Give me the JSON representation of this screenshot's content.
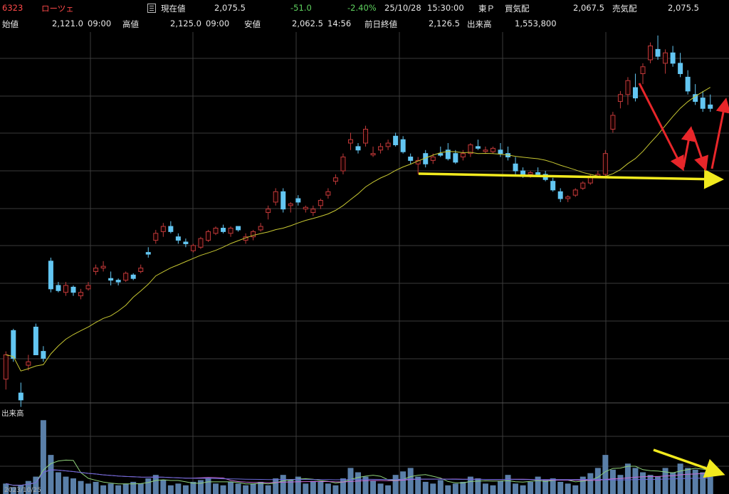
{
  "header": {
    "code": "6323",
    "name": "ローツェ",
    "current_label": "現在値",
    "current_value": "2,075.5",
    "change": "-51.0",
    "change_pct": "-2.40%",
    "datetime": "25/10/28",
    "time": "15:30:00",
    "market": "東Ｐ",
    "bid_label": "買気配",
    "bid_value": "2,067.5",
    "ask_label": "売気配",
    "ask_value": "2,075.5",
    "open_label": "始値",
    "open_value": "2,121.0",
    "open_time": "09:00",
    "high_label": "高値",
    "high_value": "2,125.0",
    "high_time": "09:00",
    "low_label": "安値",
    "low_value": "2,062.5",
    "low_time": "14:56",
    "prev_close_label": "前日終値",
    "prev_close_value": "2,126.5",
    "volume_label": "出来高",
    "volume_value": "1,553,800"
  },
  "volume_panel_label": "出来高",
  "date_label": "2023/10/25",
  "colors": {
    "up": "#c03a3a",
    "down": "#63c6f2",
    "ma": "#c8c832",
    "volume": "#5a7fa8",
    "annotation_red": "#e8262a",
    "annotation_yellow": "#f2ea1e",
    "grid": "#3a3a3a"
  },
  "chart_data": {
    "type": "candlestick",
    "series_count": 95,
    "price_range": [
      1600,
      2650
    ],
    "ohlc": [
      [
        1650,
        1730,
        1620,
        1720
      ],
      [
        1790,
        1795,
        1700,
        1710
      ],
      [
        1610,
        1640,
        1570,
        1590
      ],
      [
        1690,
        1720,
        1675,
        1700
      ],
      [
        1800,
        1810,
        1720,
        1720
      ],
      [
        1730,
        1745,
        1700,
        1710
      ],
      [
        1990,
        2000,
        1900,
        1910
      ],
      [
        1920,
        1930,
        1900,
        1905
      ],
      [
        1900,
        1930,
        1890,
        1920
      ],
      [
        1915,
        1920,
        1890,
        1900
      ],
      [
        1890,
        1910,
        1880,
        1900
      ],
      [
        1910,
        1930,
        1905,
        1920
      ],
      [
        1960,
        1980,
        1950,
        1970
      ],
      [
        1970,
        1990,
        1960,
        1975
      ],
      [
        1940,
        1960,
        1920,
        1935
      ],
      [
        1935,
        1940,
        1920,
        1930
      ],
      [
        1935,
        1960,
        1930,
        1955
      ],
      [
        1950,
        1955,
        1935,
        1940
      ],
      [
        1960,
        1980,
        1955,
        1970
      ],
      [
        2015,
        2030,
        2000,
        2010
      ],
      [
        2050,
        2080,
        2040,
        2070
      ],
      [
        2075,
        2100,
        2060,
        2090
      ],
      [
        2090,
        2105,
        2070,
        2075
      ],
      [
        2060,
        2070,
        2040,
        2050
      ],
      [
        2045,
        2055,
        2030,
        2040
      ],
      [
        2020,
        2040,
        2015,
        2035
      ],
      [
        2030,
        2060,
        2025,
        2055
      ],
      [
        2050,
        2080,
        2045,
        2075
      ],
      [
        2070,
        2090,
        2065,
        2085
      ],
      [
        2085,
        2095,
        2070,
        2075
      ],
      [
        2070,
        2090,
        2060,
        2085
      ],
      [
        2090,
        2085,
        2075,
        2080
      ],
      [
        2050,
        2070,
        2040,
        2060
      ],
      [
        2060,
        2080,
        2050,
        2075
      ],
      [
        2080,
        2100,
        2075,
        2090
      ],
      [
        2130,
        2150,
        2110,
        2140
      ],
      [
        2160,
        2200,
        2150,
        2190
      ],
      [
        2190,
        2200,
        2130,
        2140
      ],
      [
        2150,
        2160,
        2130,
        2155
      ],
      [
        2170,
        2180,
        2150,
        2160
      ],
      [
        2140,
        2150,
        2130,
        2145
      ],
      [
        2130,
        2150,
        2120,
        2140
      ],
      [
        2150,
        2170,
        2140,
        2165
      ],
      [
        2180,
        2200,
        2170,
        2190
      ],
      [
        2220,
        2240,
        2210,
        2230
      ],
      [
        2250,
        2300,
        2240,
        2290
      ],
      [
        2330,
        2360,
        2310,
        2340
      ],
      [
        2320,
        2330,
        2300,
        2310
      ],
      [
        2330,
        2380,
        2320,
        2370
      ],
      [
        2300,
        2320,
        2290,
        2300
      ],
      [
        2310,
        2330,
        2300,
        2320
      ],
      [
        2320,
        2340,
        2310,
        2330
      ],
      [
        2350,
        2360,
        2320,
        2325
      ],
      [
        2340,
        2350,
        2300,
        2305
      ],
      [
        2290,
        2300,
        2270,
        2280
      ],
      [
        2270,
        2290,
        2240,
        2280
      ],
      [
        2300,
        2310,
        2260,
        2270
      ],
      [
        2280,
        2300,
        2270,
        2290
      ],
      [
        2300,
        2320,
        2290,
        2295
      ],
      [
        2310,
        2330,
        2280,
        2285
      ],
      [
        2300,
        2310,
        2270,
        2275
      ],
      [
        2290,
        2310,
        2280,
        2300
      ],
      [
        2300,
        2330,
        2290,
        2325
      ],
      [
        2320,
        2340,
        2310,
        2315
      ],
      [
        2310,
        2320,
        2300,
        2310
      ],
      [
        2305,
        2320,
        2300,
        2315
      ],
      [
        2310,
        2330,
        2290,
        2300
      ],
      [
        2300,
        2320,
        2280,
        2290
      ],
      [
        2270,
        2290,
        2240,
        2250
      ],
      [
        2250,
        2260,
        2230,
        2240
      ],
      [
        2240,
        2250,
        2230,
        2245
      ],
      [
        2245,
        2260,
        2235,
        2240
      ],
      [
        2240,
        2250,
        2220,
        2225
      ],
      [
        2220,
        2230,
        2190,
        2195
      ],
      [
        2190,
        2200,
        2160,
        2170
      ],
      [
        2170,
        2180,
        2160,
        2175
      ],
      [
        2180,
        2200,
        2175,
        2195
      ],
      [
        2200,
        2220,
        2195,
        2215
      ],
      [
        2215,
        2240,
        2210,
        2235
      ],
      [
        2235,
        2250,
        2230,
        2240
      ],
      [
        2240,
        2310,
        2235,
        2300
      ],
      [
        2370,
        2420,
        2360,
        2410
      ],
      [
        2450,
        2480,
        2430,
        2470
      ],
      [
        2470,
        2520,
        2440,
        2510
      ],
      [
        2490,
        2530,
        2450,
        2460
      ],
      [
        2530,
        2560,
        2500,
        2550
      ],
      [
        2570,
        2620,
        2560,
        2610
      ],
      [
        2600,
        2640,
        2570,
        2580
      ],
      [
        2560,
        2600,
        2530,
        2590
      ],
      [
        2590,
        2610,
        2550,
        2560
      ],
      [
        2560,
        2590,
        2520,
        2530
      ],
      [
        2520,
        2540,
        2470,
        2480
      ],
      [
        2470,
        2500,
        2440,
        2450
      ],
      [
        2460,
        2480,
        2420,
        2430
      ],
      [
        2440,
        2470,
        2420,
        2430
      ]
    ],
    "ma_note": "moving average line",
    "volume": [
      0.12,
      0.08,
      0.1,
      0.15,
      0.2,
      0.85,
      0.45,
      0.25,
      0.2,
      0.18,
      0.15,
      0.12,
      0.14,
      0.1,
      0.12,
      0.1,
      0.12,
      0.14,
      0.12,
      0.18,
      0.22,
      0.16,
      0.1,
      0.12,
      0.1,
      0.14,
      0.16,
      0.18,
      0.12,
      0.1,
      0.14,
      0.12,
      0.1,
      0.12,
      0.14,
      0.1,
      0.18,
      0.22,
      0.16,
      0.2,
      0.12,
      0.15,
      0.14,
      0.12,
      0.1,
      0.18,
      0.3,
      0.25,
      0.2,
      0.15,
      0.12,
      0.1,
      0.22,
      0.26,
      0.3,
      0.2,
      0.14,
      0.12,
      0.16,
      0.1,
      0.12,
      0.14,
      0.2,
      0.18,
      0.12,
      0.1,
      0.15,
      0.22,
      0.12,
      0.1,
      0.14,
      0.2,
      0.16,
      0.18,
      0.14,
      0.12,
      0.1,
      0.2,
      0.24,
      0.3,
      0.45,
      0.28,
      0.22,
      0.35,
      0.3,
      0.25,
      0.22,
      0.2,
      0.3,
      0.25,
      0.35,
      0.3,
      0.28,
      0.25,
      0.2
    ]
  }
}
